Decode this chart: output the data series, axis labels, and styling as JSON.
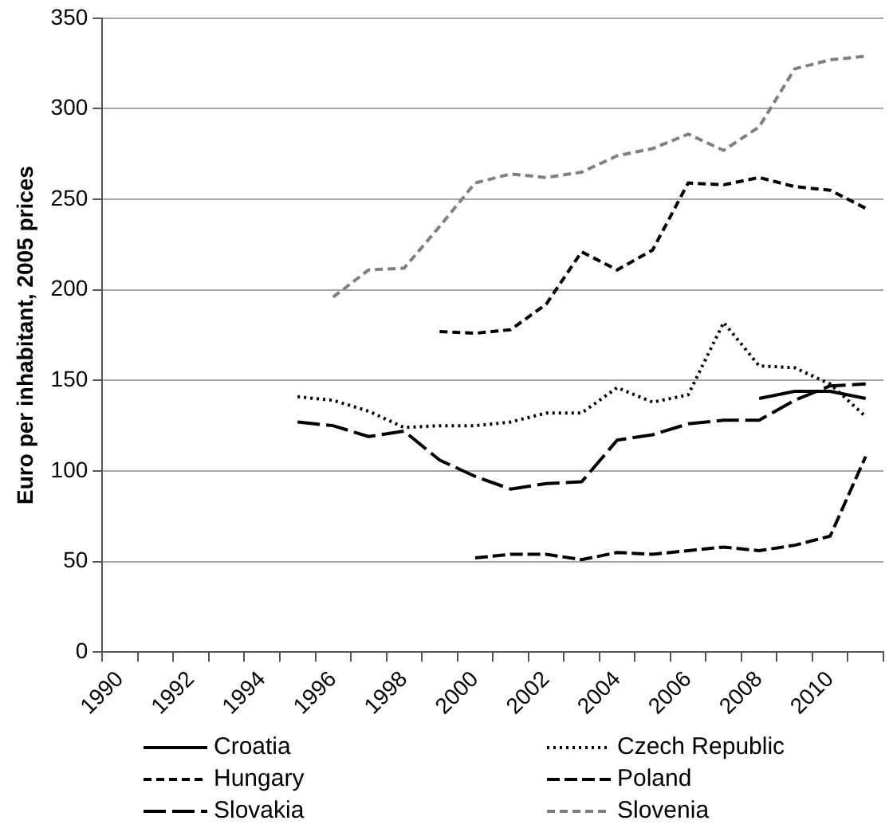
{
  "chart_data": {
    "type": "line",
    "ylabel": "Euro per inhabitant, 2005 prices",
    "categories": [
      "1990",
      null,
      "1992",
      null,
      "1994",
      null,
      "1996",
      null,
      "1998",
      null,
      "2000",
      null,
      "2002",
      null,
      "2004",
      null,
      "2006",
      null,
      "2008",
      null,
      "2010",
      null
    ],
    "series": [
      {
        "name": "Croatia",
        "color": "#000000",
        "line_style": "solid",
        "values": [
          null,
          null,
          null,
          null,
          null,
          null,
          null,
          null,
          null,
          null,
          null,
          null,
          null,
          null,
          null,
          null,
          null,
          null,
          140,
          144,
          144,
          140
        ]
      },
      {
        "name": "Czech Republic",
        "color": "#000000",
        "line_style": "dotted",
        "values": [
          null,
          null,
          null,
          null,
          null,
          141,
          139,
          133,
          124,
          125,
          125,
          127,
          132,
          132,
          146,
          138,
          142,
          182,
          158,
          157,
          148,
          130
        ]
      },
      {
        "name": "Hungary",
        "color": "#000000",
        "line_style": "dashed",
        "values": [
          null,
          null,
          null,
          null,
          null,
          null,
          null,
          null,
          null,
          177,
          176,
          178,
          192,
          221,
          211,
          222,
          259,
          258,
          262,
          257,
          255,
          245
        ]
      },
      {
        "name": "Poland",
        "color": "#000000",
        "line_style": "dashed",
        "values": [
          null,
          null,
          null,
          null,
          null,
          null,
          null,
          null,
          null,
          null,
          52,
          54,
          54,
          51,
          55,
          54,
          56,
          58,
          56,
          59,
          64,
          108
        ]
      },
      {
        "name": "Slovakia",
        "color": "#000000",
        "line_style": "dashed",
        "values": [
          null,
          null,
          null,
          null,
          null,
          127,
          125,
          119,
          122,
          106,
          97,
          90,
          93,
          94,
          117,
          120,
          126,
          128,
          128,
          139,
          147,
          148
        ]
      },
      {
        "name": "Slovenia",
        "color": "#808080",
        "line_style": "dashed",
        "values": [
          null,
          null,
          null,
          null,
          null,
          null,
          196,
          211,
          212,
          235,
          259,
          264,
          262,
          265,
          274,
          278,
          286,
          277,
          290,
          322,
          327,
          329
        ]
      }
    ],
    "ylim": [
      0,
      350
    ],
    "yticks": [
      0,
      50,
      100,
      150,
      200,
      250,
      300,
      350
    ],
    "grid": "y",
    "legend": "bottom",
    "marker": "none"
  }
}
